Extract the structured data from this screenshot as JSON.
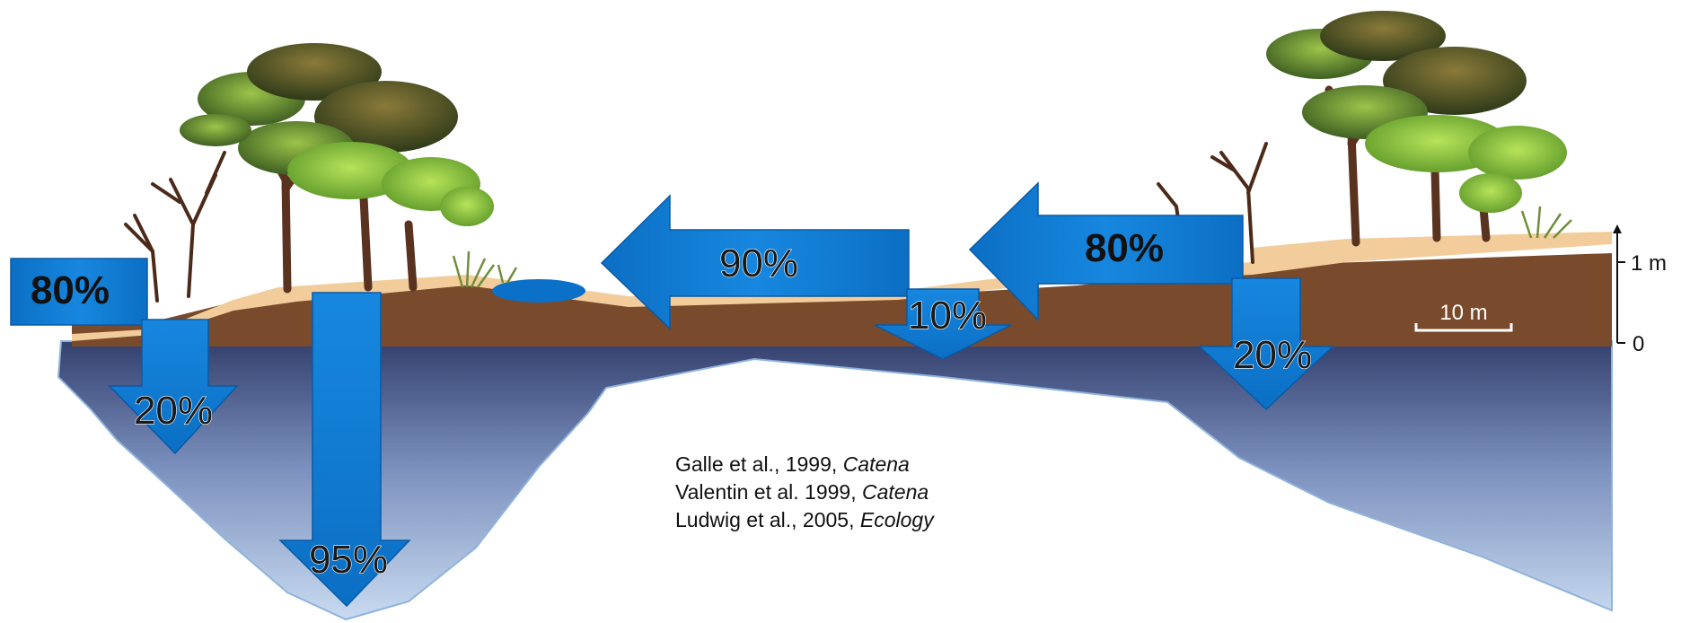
{
  "colors": {
    "arrow": "#0a77cf",
    "arrow_edge": "#0a5aa5",
    "soil_dark": "#7a4a2c",
    "soil_light": "#f2cd9b",
    "groundwater_top": "#3b4775",
    "groundwater_bottom": "#c4d6ee",
    "pond": "#0a70c8"
  },
  "arrows": {
    "left_edge_in": "80%",
    "left_infiltration": "20%",
    "deep_infiltration": "95%",
    "runoff_middle": "90%",
    "middle_infiltration": "10%",
    "runoff_right": "80%",
    "right_infiltration": "20%"
  },
  "scale": {
    "vertical_top": "1 m",
    "vertical_bottom": "0",
    "horizontal": "10 m"
  },
  "references": [
    {
      "authors": "Galle et al., 1999, ",
      "journal": "Catena"
    },
    {
      "authors": "Valentin et al. 1999, ",
      "journal": "Catena"
    },
    {
      "authors": "Ludwig et al., 2005, ",
      "journal": "Ecology"
    }
  ]
}
